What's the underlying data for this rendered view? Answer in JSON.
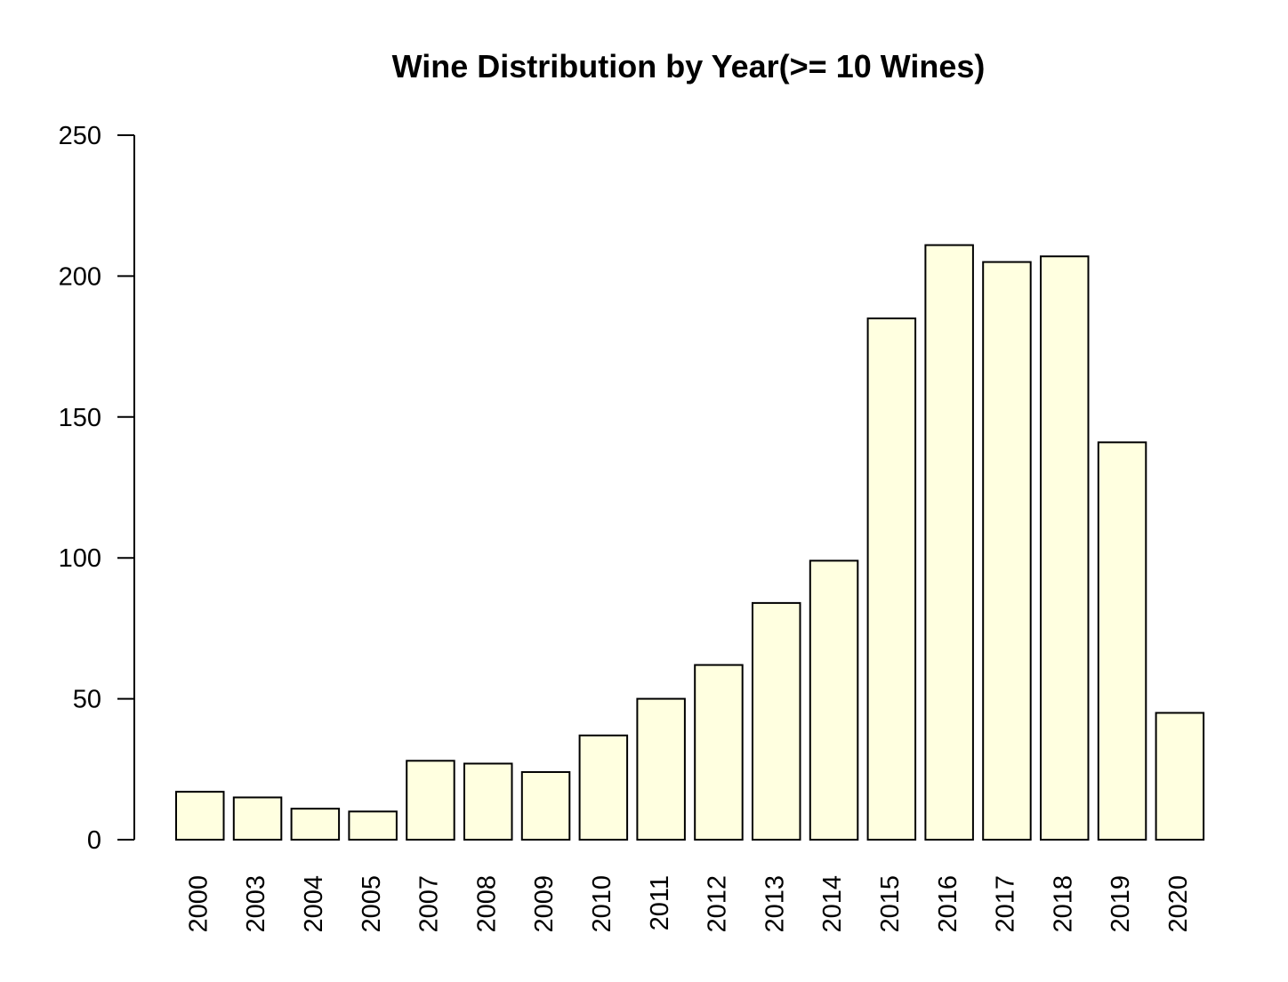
{
  "chart_data": {
    "type": "bar",
    "title": "Wine Distribution by Year(>= 10 Wines)",
    "xlabel": "",
    "ylabel": "",
    "categories": [
      "2000",
      "2003",
      "2004",
      "2005",
      "2007",
      "2008",
      "2009",
      "2010",
      "2011",
      "2012",
      "2013",
      "2014",
      "2015",
      "2016",
      "2017",
      "2018",
      "2019",
      "2020"
    ],
    "values": [
      17,
      15,
      11,
      10,
      28,
      27,
      24,
      37,
      50,
      62,
      84,
      99,
      185,
      211,
      205,
      207,
      141,
      45
    ],
    "ylim": [
      0,
      250
    ],
    "yticks": [
      "0",
      "50",
      "100",
      "150",
      "200",
      "250"
    ],
    "grid": false,
    "legend": "none",
    "colors": {
      "bar_fill": "#ffffe0",
      "bar_stroke": "#000000"
    }
  }
}
